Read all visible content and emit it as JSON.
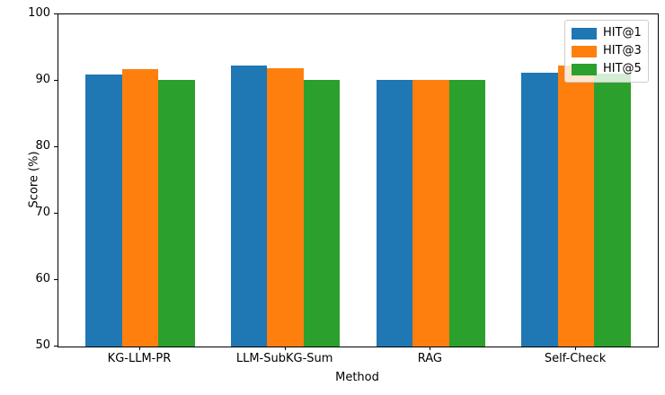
{
  "chart_data": {
    "type": "bar",
    "title": "",
    "xlabel": "Method",
    "ylabel": "Score (%)",
    "categories": [
      "KG-LLM-PR",
      "LLM-SubKG-Sum",
      "RAG",
      "Self-Check"
    ],
    "series": [
      {
        "name": "HIT@1",
        "color": "#1f77b4",
        "values": [
          91.0,
          92.3,
          90.2,
          91.2
        ]
      },
      {
        "name": "HIT@3",
        "color": "#ff7f0e",
        "values": [
          91.8,
          91.9,
          90.2,
          92.3
        ]
      },
      {
        "name": "HIT@5",
        "color": "#2ca02c",
        "values": [
          90.2,
          90.2,
          90.2,
          91.1
        ]
      }
    ],
    "ylim": [
      50,
      100
    ],
    "yticks": [
      50,
      60,
      70,
      80,
      90,
      100
    ],
    "xlim": [
      -0.5625,
      3.5625
    ],
    "bar_width": 0.25,
    "grid": false,
    "legend_position": "upper-right",
    "axis_color": "#000000",
    "background_color": "#ffffff"
  }
}
